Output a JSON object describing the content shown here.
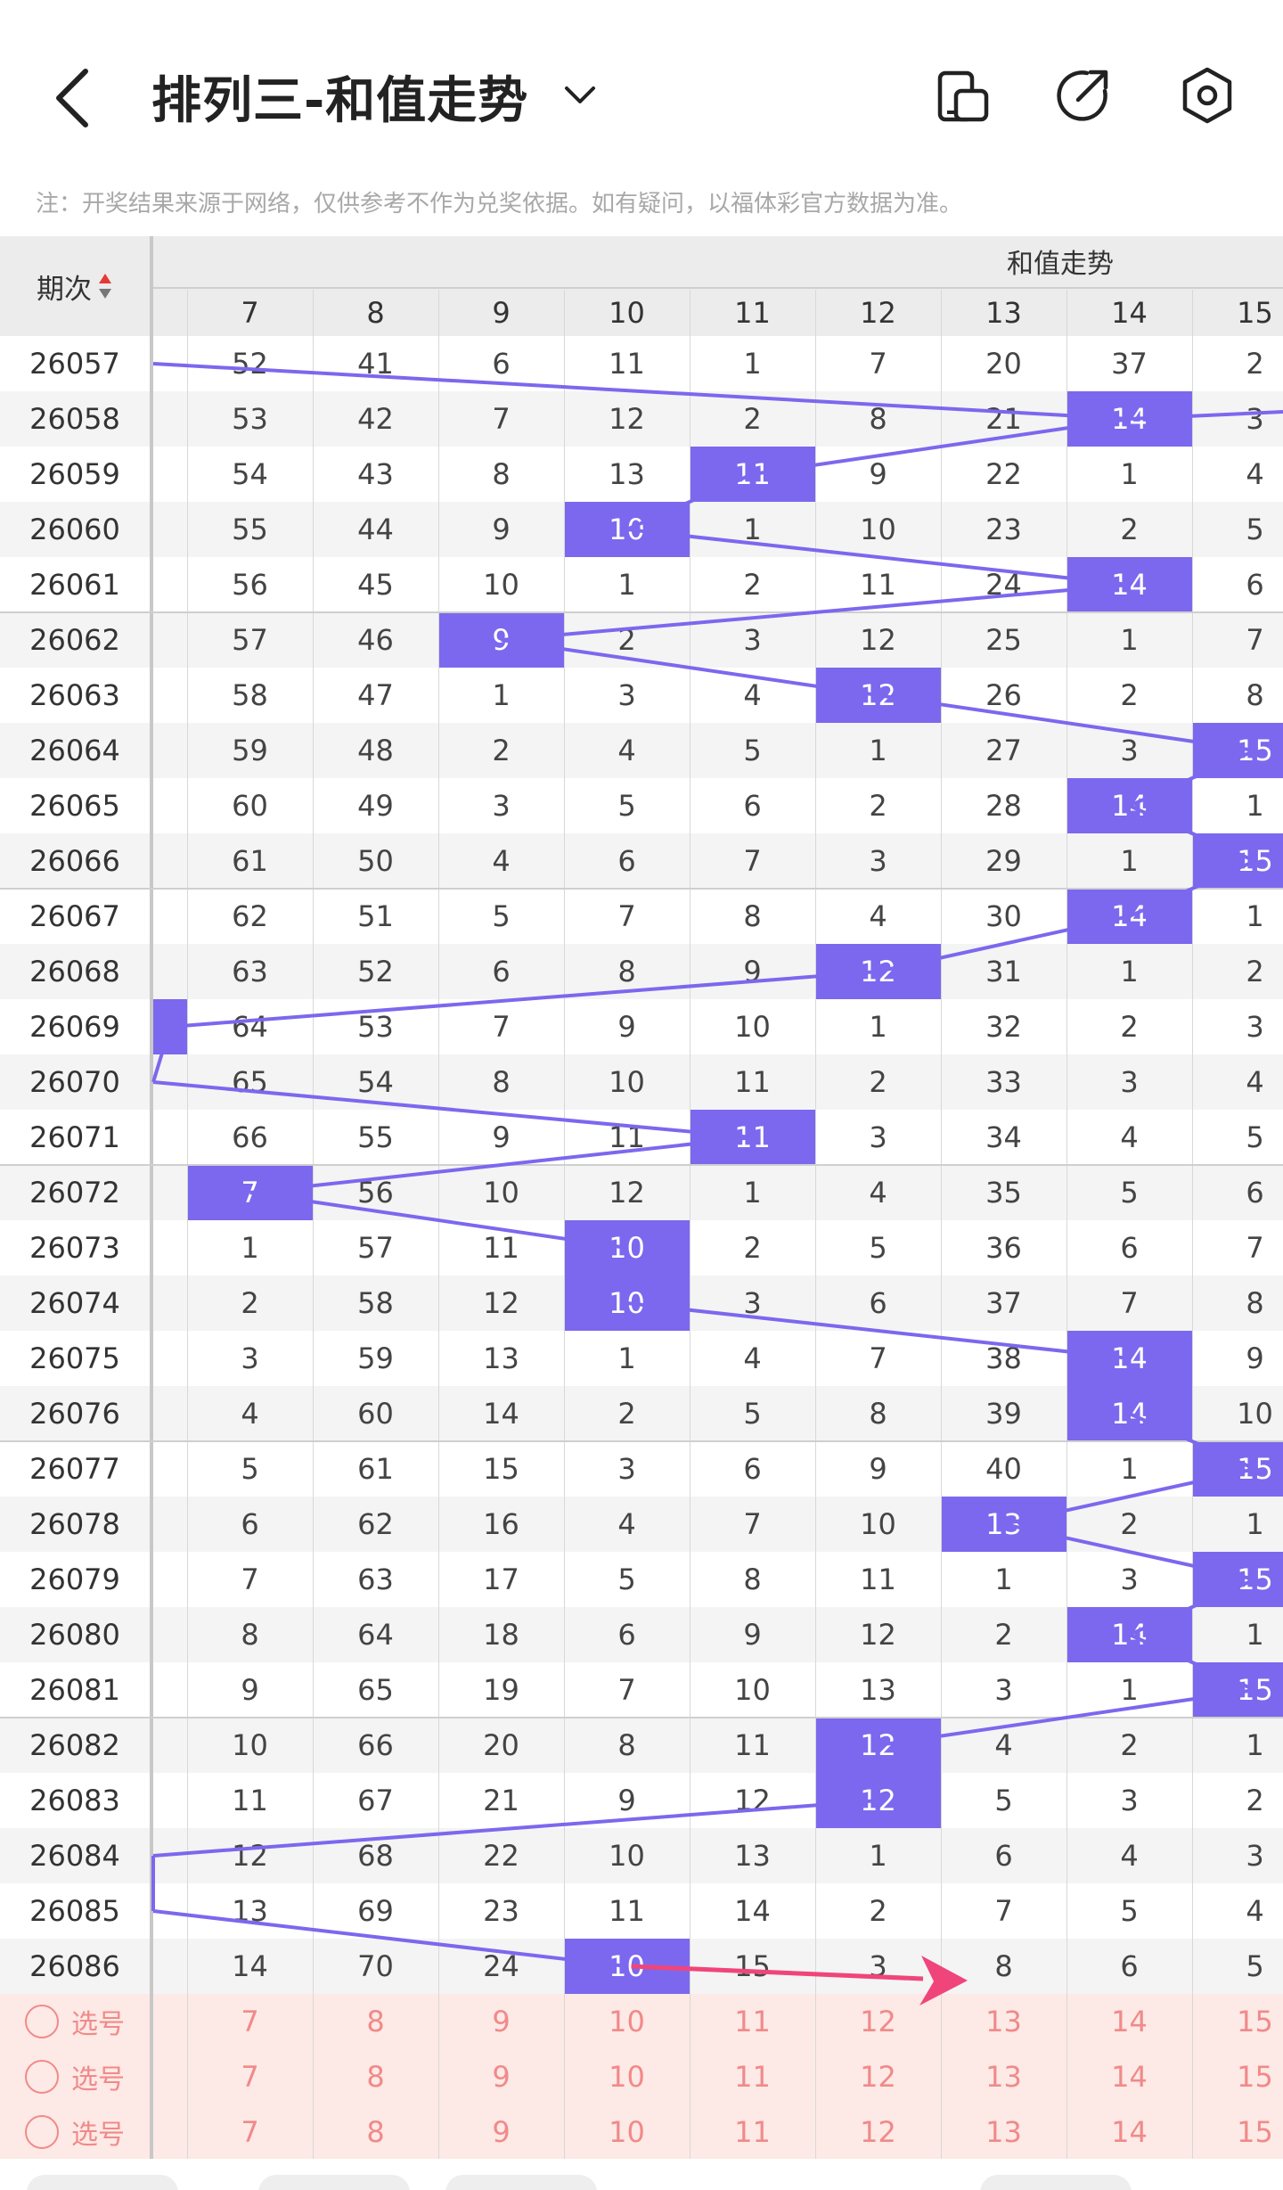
{
  "header": {
    "title": "排列三-和值走势",
    "icons": [
      "back-arrow-icon",
      "chevron-down-icon",
      "layout-toggle-icon",
      "share-icon",
      "settings-icon"
    ]
  },
  "notice": "注：开奖结果来源于网络，仅供参考不作为兑奖依据。如有疑问，以福体彩官方数据为准。",
  "table": {
    "period_header": "期次",
    "group_header": "和值走势",
    "columns": [
      "7",
      "8",
      "9",
      "10",
      "11",
      "12",
      "13",
      "14",
      "15"
    ],
    "rows": [
      {
        "period": "26057",
        "cells": [
          "52",
          "41",
          "6",
          "11",
          "1",
          "7",
          "20",
          "37",
          "2"
        ],
        "hit": null
      },
      {
        "period": "26058",
        "cells": [
          "53",
          "42",
          "7",
          "12",
          "2",
          "8",
          "21",
          "14",
          "3"
        ],
        "hit": 8
      },
      {
        "period": "26059",
        "cells": [
          "54",
          "43",
          "8",
          "13",
          "11",
          "9",
          "22",
          "1",
          "4"
        ],
        "hit": 5
      },
      {
        "period": "26060",
        "cells": [
          "55",
          "44",
          "9",
          "10",
          "1",
          "10",
          "23",
          "2",
          "5"
        ],
        "hit": 4
      },
      {
        "period": "26061",
        "cells": [
          "56",
          "45",
          "10",
          "1",
          "2",
          "11",
          "24",
          "14",
          "6"
        ],
        "hit": 8
      },
      {
        "period": "26062",
        "cells": [
          "57",
          "46",
          "9",
          "2",
          "3",
          "12",
          "25",
          "1",
          "7"
        ],
        "hit": 3
      },
      {
        "period": "26063",
        "cells": [
          "58",
          "47",
          "1",
          "3",
          "4",
          "12",
          "26",
          "2",
          "8"
        ],
        "hit": 6
      },
      {
        "period": "26064",
        "cells": [
          "59",
          "48",
          "2",
          "4",
          "5",
          "1",
          "27",
          "3",
          "15"
        ],
        "hit": 9
      },
      {
        "period": "26065",
        "cells": [
          "60",
          "49",
          "3",
          "5",
          "6",
          "2",
          "28",
          "14",
          "1"
        ],
        "hit": 8
      },
      {
        "period": "26066",
        "cells": [
          "61",
          "50",
          "4",
          "6",
          "7",
          "3",
          "29",
          "1",
          "15"
        ],
        "hit": 9
      },
      {
        "period": "26067",
        "cells": [
          "62",
          "51",
          "5",
          "7",
          "8",
          "4",
          "30",
          "14",
          "1"
        ],
        "hit": 8
      },
      {
        "period": "26068",
        "cells": [
          "63",
          "52",
          "6",
          "8",
          "9",
          "12",
          "31",
          "1",
          "2"
        ],
        "hit": 6
      },
      {
        "period": "26069",
        "cells": [
          "64",
          "53",
          "7",
          "9",
          "10",
          "1",
          "32",
          "2",
          "3"
        ],
        "hit": 0
      },
      {
        "period": "26070",
        "cells": [
          "65",
          "54",
          "8",
          "10",
          "11",
          "2",
          "33",
          "3",
          "4"
        ],
        "hit": null
      },
      {
        "period": "26071",
        "cells": [
          "66",
          "55",
          "9",
          "11",
          "11",
          "3",
          "34",
          "4",
          "5"
        ],
        "hit": 5
      },
      {
        "period": "26072",
        "cells": [
          "7",
          "56",
          "10",
          "12",
          "1",
          "4",
          "35",
          "5",
          "6"
        ],
        "hit": 1
      },
      {
        "period": "26073",
        "cells": [
          "1",
          "57",
          "11",
          "10",
          "2",
          "5",
          "36",
          "6",
          "7"
        ],
        "hit": 4
      },
      {
        "period": "26074",
        "cells": [
          "2",
          "58",
          "12",
          "10",
          "3",
          "6",
          "37",
          "7",
          "8"
        ],
        "hit": 4
      },
      {
        "period": "26075",
        "cells": [
          "3",
          "59",
          "13",
          "1",
          "4",
          "7",
          "38",
          "14",
          "9"
        ],
        "hit": 8
      },
      {
        "period": "26076",
        "cells": [
          "4",
          "60",
          "14",
          "2",
          "5",
          "8",
          "39",
          "14",
          "10"
        ],
        "hit": 8
      },
      {
        "period": "26077",
        "cells": [
          "5",
          "61",
          "15",
          "3",
          "6",
          "9",
          "40",
          "1",
          "15"
        ],
        "hit": 9
      },
      {
        "period": "26078",
        "cells": [
          "6",
          "62",
          "16",
          "4",
          "7",
          "10",
          "13",
          "2",
          "1"
        ],
        "hit": 7
      },
      {
        "period": "26079",
        "cells": [
          "7",
          "63",
          "17",
          "5",
          "8",
          "11",
          "1",
          "3",
          "15"
        ],
        "hit": 9
      },
      {
        "period": "26080",
        "cells": [
          "8",
          "64",
          "18",
          "6",
          "9",
          "12",
          "2",
          "14",
          "1"
        ],
        "hit": 8
      },
      {
        "period": "26081",
        "cells": [
          "9",
          "65",
          "19",
          "7",
          "10",
          "13",
          "3",
          "1",
          "15"
        ],
        "hit": 9
      },
      {
        "period": "26082",
        "cells": [
          "10",
          "66",
          "20",
          "8",
          "11",
          "12",
          "4",
          "2",
          "1"
        ],
        "hit": 6
      },
      {
        "period": "26083",
        "cells": [
          "11",
          "67",
          "21",
          "9",
          "12",
          "12",
          "5",
          "3",
          "2"
        ],
        "hit": 6
      },
      {
        "period": "26084",
        "cells": [
          "12",
          "68",
          "22",
          "10",
          "13",
          "1",
          "6",
          "4",
          "3"
        ],
        "hit": null
      },
      {
        "period": "26085",
        "cells": [
          "13",
          "69",
          "23",
          "11",
          "14",
          "2",
          "7",
          "5",
          "4"
        ],
        "hit": null
      },
      {
        "period": "26086",
        "cells": [
          "14",
          "70",
          "24",
          "10",
          "15",
          "3",
          "8",
          "6",
          "5"
        ],
        "hit": 4
      }
    ],
    "pick_rows": [
      {
        "label": "选号",
        "cells": [
          "7",
          "8",
          "9",
          "10",
          "11",
          "12",
          "13",
          "14",
          "15"
        ]
      },
      {
        "label": "选号",
        "cells": [
          "7",
          "8",
          "9",
          "10",
          "11",
          "12",
          "13",
          "14",
          "15"
        ]
      },
      {
        "label": "选号",
        "cells": [
          "7",
          "8",
          "9",
          "10",
          "11",
          "12",
          "13",
          "14",
          "15"
        ]
      }
    ]
  },
  "colors": {
    "hit": "#7b68ee",
    "trend_line": "#7b68ee",
    "pick_text": "#f08a8a",
    "pick_bg": "#fde9e5",
    "arrow": "#f0457a"
  }
}
